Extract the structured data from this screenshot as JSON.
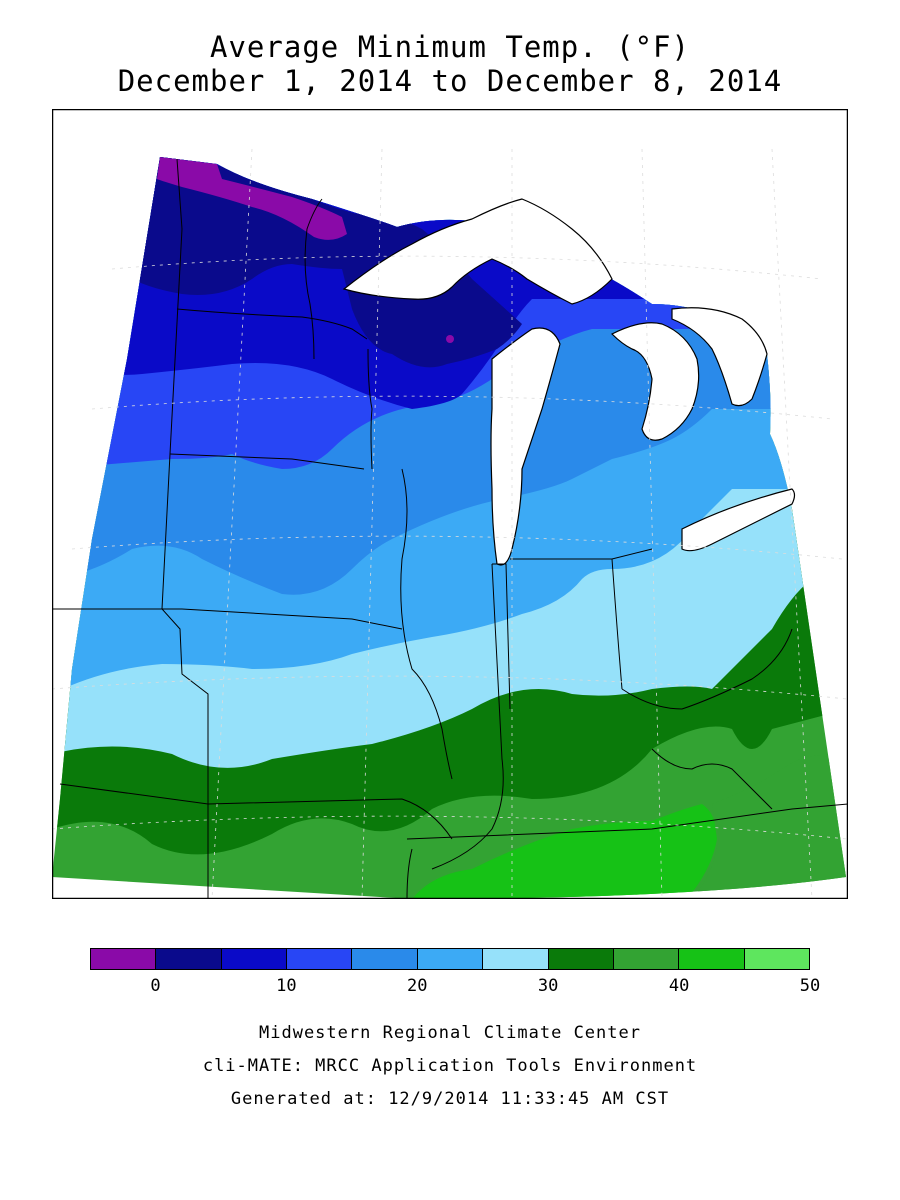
{
  "title": {
    "line1": "Average Minimum Temp. (°F)",
    "line2": "December 1, 2014 to December 8, 2014"
  },
  "legend": {
    "colors": [
      "#8a0aa8",
      "#0a0a8c",
      "#0a0ac8",
      "#2846f5",
      "#2a8aea",
      "#3caaf5",
      "#96e1fa",
      "#0a7a0a",
      "#33a333",
      "#16c216",
      "#5ee65e"
    ],
    "labels": [
      "0",
      "10",
      "20",
      "30",
      "40",
      "50"
    ],
    "label_values": [
      0,
      10,
      20,
      30,
      40,
      50
    ],
    "min": -5,
    "max": 50
  },
  "footer": {
    "line1": "Midwestern Regional Climate Center",
    "line2": "cli-MATE: MRCC Application Tools Environment",
    "line3": "Generated at: 12/9/2014 11:33:45 AM CST"
  },
  "map_fills": {
    "band_0_5": "#0a0a8c",
    "band_5_10": "#0a0ac8",
    "band_10_15": "#2846f5",
    "band_15_20": "#2a8aea",
    "band_20_25": "#3caaf5",
    "band_25_30": "#96e1fa",
    "band_30_35": "#0a7a0a",
    "band_35_40": "#33a333",
    "band_40_45": "#16c216",
    "band_below_0": "#8a0aa8",
    "lakes": "#ffffff"
  }
}
